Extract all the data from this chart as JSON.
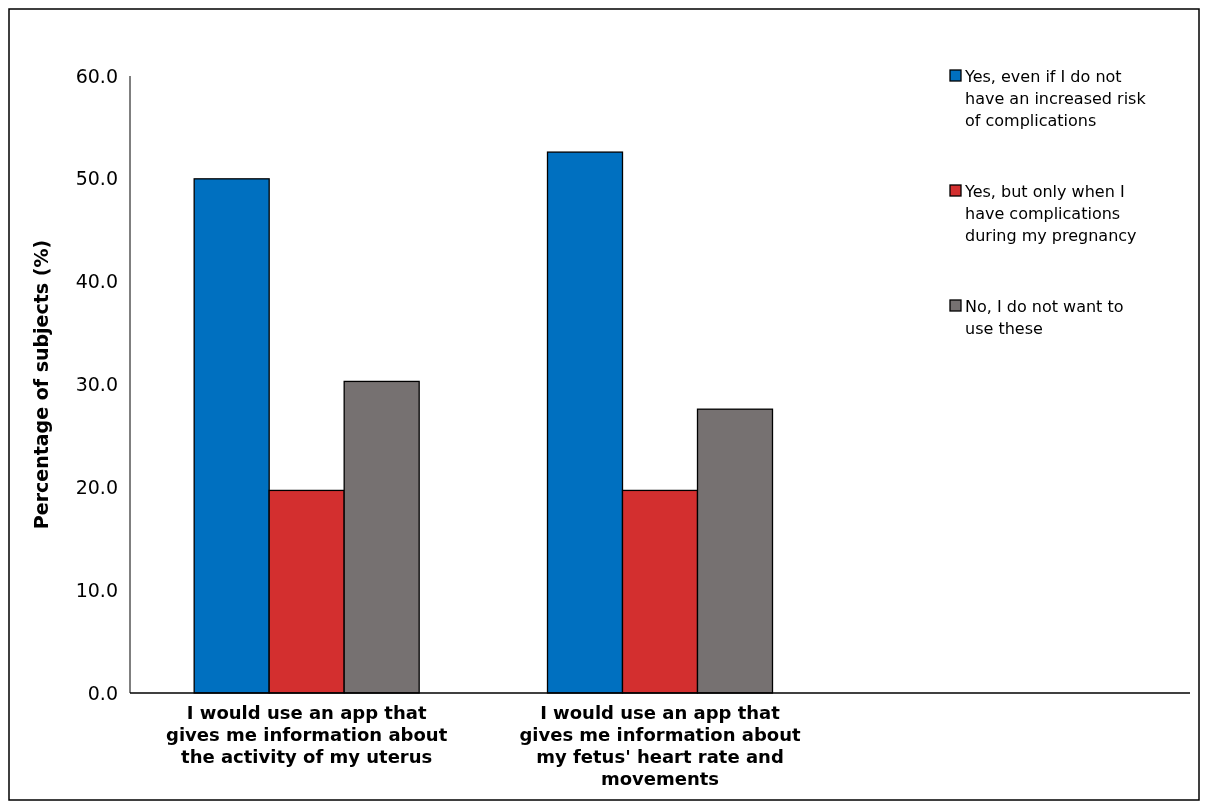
{
  "chart_data": {
    "type": "bar",
    "ylabel": "Percentage of subjects (%)",
    "categories": [
      "I would use an app that gives me information about the activity of my uterus",
      "I would use an app that gives me information about my fetus' heart rate and movements",
      null
    ],
    "series": [
      {
        "name": "Yes, even if I do not have an increased risk of complications",
        "color": "#0070c0",
        "values": [
          50.0,
          52.6,
          null
        ]
      },
      {
        "name": "Yes, but only when I have complications during my pregnancy",
        "color": "#d32f2f",
        "values": [
          19.7,
          19.7,
          null
        ]
      },
      {
        "name": "No, I do not want to use these",
        "color": "#767171",
        "values": [
          30.3,
          27.6,
          null
        ]
      }
    ],
    "ylim": [
      0,
      60
    ],
    "yticks": [
      {
        "value": 0,
        "label": "0.0"
      },
      {
        "value": 10,
        "label": "10.0"
      },
      {
        "value": 20,
        "label": "20.0"
      },
      {
        "value": 30,
        "label": "30.0"
      },
      {
        "value": 40,
        "label": "40.0"
      },
      {
        "value": 50,
        "label": "50.0"
      },
      {
        "value": 60,
        "label": "60.0"
      }
    ],
    "grid": false,
    "legend": "top right"
  }
}
